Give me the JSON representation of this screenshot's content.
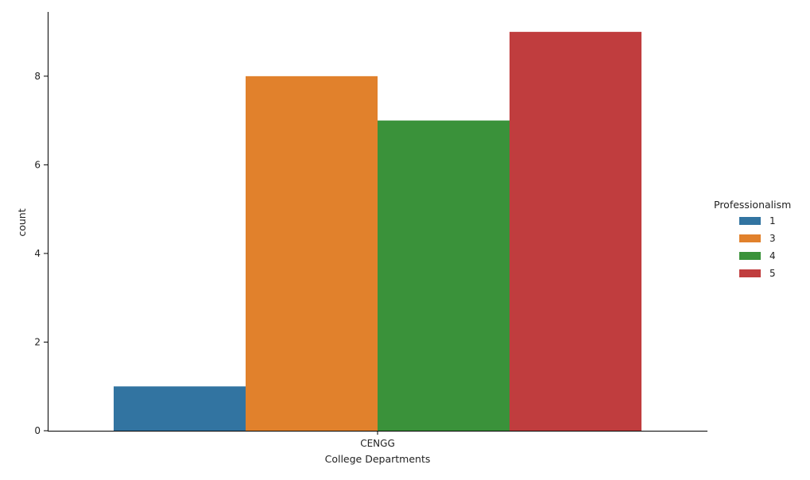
{
  "chart_data": {
    "type": "bar",
    "categories": [
      "CENGG"
    ],
    "series": [
      {
        "name": "1",
        "values": [
          1
        ],
        "color": "#3274a1"
      },
      {
        "name": "3",
        "values": [
          8
        ],
        "color": "#e1812c"
      },
      {
        "name": "4",
        "values": [
          7
        ],
        "color": "#3a923a"
      },
      {
        "name": "5",
        "values": [
          9
        ],
        "color": "#c03d3e"
      }
    ],
    "xlabel": "College Departments",
    "ylabel": "count",
    "ylim": [
      0,
      9.45
    ],
    "yticks": [
      0,
      2,
      4,
      6,
      8
    ],
    "legend": {
      "title": "Professionalism",
      "placement": "right"
    },
    "grid": false
  }
}
